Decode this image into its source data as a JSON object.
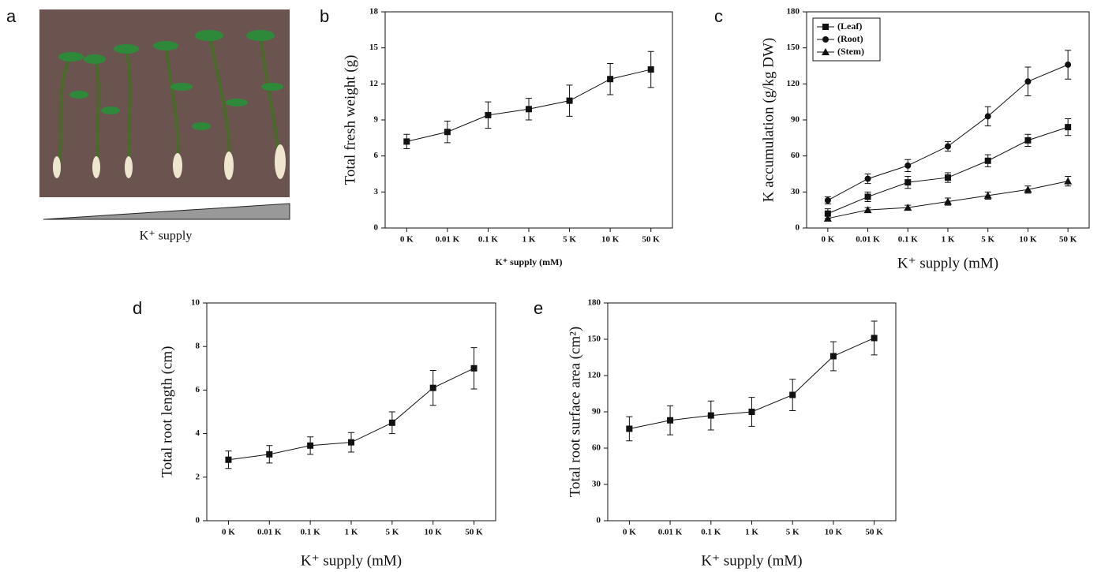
{
  "photo": {
    "label": "a",
    "caption": "K⁺ supply"
  },
  "chart_data": [
    {
      "type": "line",
      "label": "b",
      "y_label": "Total fresh weight (g)",
      "x_label": "K⁺ supply (mM)",
      "categories": [
        "0 K",
        "0.01 K",
        "0.1 K",
        "1 K",
        "5 K",
        "10 K",
        "50 K"
      ],
      "values": [
        7.2,
        8.0,
        9.4,
        9.9,
        10.6,
        12.4,
        13.2
      ],
      "errors": [
        0.6,
        0.9,
        1.1,
        0.9,
        1.3,
        1.3,
        1.5
      ],
      "color": "#111111",
      "marker": "square",
      "ylim": [
        0,
        18
      ],
      "yticks": [
        0,
        3,
        6,
        9,
        12,
        15,
        18
      ]
    },
    {
      "type": "line",
      "label": "c",
      "y_label": "K accumulation (g/kg DW)",
      "x_label": "K⁺ supply (mM)",
      "categories": [
        "0 K",
        "0.01 K",
        "0.1 K",
        "1 K",
        "5 K",
        "10 K",
        "50 K"
      ],
      "series": [
        {
          "name": "(Leaf)",
          "color": "#111111",
          "marker": "square",
          "values": [
            12,
            26,
            38,
            42,
            56,
            73,
            84
          ],
          "errors": [
            4,
            4,
            5,
            4,
            5,
            5,
            7
          ]
        },
        {
          "name": "(Root)",
          "color": "#111111",
          "marker": "circle",
          "values": [
            23,
            41,
            52,
            68,
            93,
            122,
            136
          ],
          "errors": [
            3,
            4,
            5,
            4,
            8,
            12,
            12
          ]
        },
        {
          "name": "(Stem)",
          "color": "#111111",
          "marker": "triangle",
          "values": [
            8,
            15,
            17,
            22,
            27,
            32,
            39
          ],
          "errors": [
            2,
            2,
            2,
            3,
            3,
            3,
            4
          ]
        }
      ],
      "legend": "top-left",
      "ylim": [
        0,
        180
      ],
      "yticks": [
        0,
        30,
        60,
        90,
        120,
        150,
        180
      ]
    },
    {
      "type": "line",
      "label": "d",
      "y_label": "Total root length (cm)",
      "x_label": "K⁺ supply (mM)",
      "categories": [
        "0 K",
        "0.01 K",
        "0.1 K",
        "1 K",
        "5 K",
        "10 K",
        "50 K"
      ],
      "values": [
        2.8,
        3.05,
        3.45,
        3.6,
        4.5,
        6.1,
        7.0
      ],
      "errors": [
        0.4,
        0.4,
        0.4,
        0.45,
        0.5,
        0.8,
        0.95
      ],
      "color": "#111111",
      "marker": "square",
      "ylim": [
        0,
        10
      ],
      "yticks": [
        0,
        2,
        4,
        6,
        8,
        10
      ]
    },
    {
      "type": "line",
      "label": "e",
      "y_label": "Total root surface area (cm²)",
      "x_label": "K⁺ supply (mM)",
      "categories": [
        "0 K",
        "0.01 K",
        "0.1 K",
        "1 K",
        "5 K",
        "10 K",
        "50 K"
      ],
      "values": [
        76,
        83,
        87,
        90,
        104,
        136,
        151
      ],
      "errors": [
        10,
        12,
        12,
        12,
        13,
        12,
        14
      ],
      "color": "#111111",
      "marker": "square",
      "ylim": [
        0,
        180
      ],
      "yticks": [
        0,
        30,
        60,
        90,
        120,
        150,
        180
      ]
    }
  ]
}
